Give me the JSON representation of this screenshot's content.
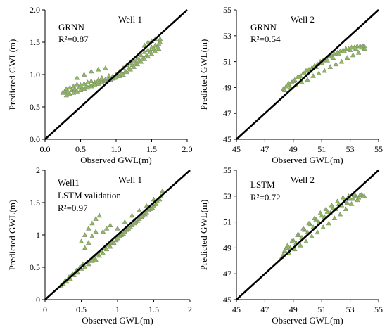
{
  "chart_data": [
    {
      "type": "scatter",
      "panel_label": "Well 1",
      "annotations": [
        "GRNN",
        "R²=0.87"
      ],
      "xlabel": "Observed GWL(m)",
      "ylabel": "Predicted GWL(m)",
      "xlim": [
        0,
        2.0
      ],
      "ylim": [
        0,
        2.0
      ],
      "xticks": [
        "0.0",
        "0.5",
        "1.0",
        "1.5",
        "2.0"
      ],
      "yticks": [
        "0.0",
        "0.5",
        "1.0",
        "1.5",
        "2.0"
      ],
      "grid": false,
      "reference_line": "1:1",
      "series": [
        {
          "marker": "triangle",
          "color": "#8fbc5a",
          "x": [
            0.25,
            0.28,
            0.3,
            0.32,
            0.35,
            0.38,
            0.4,
            0.42,
            0.45,
            0.48,
            0.5,
            0.52,
            0.55,
            0.58,
            0.6,
            0.63,
            0.65,
            0.68,
            0.7,
            0.72,
            0.75,
            0.78,
            0.8,
            0.82,
            0.85,
            0.88,
            0.9,
            0.92,
            0.95,
            0.98,
            1.0,
            1.03,
            1.05,
            1.08,
            1.1,
            1.13,
            1.15,
            1.18,
            1.2,
            1.23,
            1.25,
            1.28,
            1.3,
            1.33,
            1.35,
            1.38,
            1.4,
            1.43,
            1.45,
            1.48,
            1.5,
            1.53,
            1.55,
            1.58,
            1.6,
            1.62,
            0.3,
            0.35,
            0.4,
            0.45,
            0.5,
            0.55,
            0.6,
            0.65,
            0.7,
            0.75,
            0.8,
            0.85,
            0.9,
            0.95,
            1.0,
            1.05,
            1.1,
            1.15,
            1.2,
            1.25,
            1.3,
            1.35,
            1.4,
            1.45,
            1.5,
            1.55,
            1.6,
            0.45,
            0.55,
            0.65,
            0.75,
            0.85,
            1.4,
            1.45,
            1.5,
            1.55,
            1.62
          ],
          "y": [
            0.72,
            0.75,
            0.78,
            0.74,
            0.8,
            0.76,
            0.82,
            0.78,
            0.85,
            0.8,
            0.84,
            0.79,
            0.86,
            0.82,
            0.88,
            0.83,
            0.9,
            0.85,
            0.88,
            0.86,
            0.92,
            0.88,
            0.95,
            0.9,
            0.93,
            0.91,
            0.98,
            0.92,
            0.97,
            0.95,
            1.0,
            0.98,
            1.05,
            1.02,
            1.1,
            1.05,
            1.15,
            1.1,
            1.18,
            1.15,
            1.22,
            1.18,
            1.25,
            1.22,
            1.3,
            1.25,
            1.35,
            1.3,
            1.38,
            1.35,
            1.42,
            1.4,
            1.45,
            1.42,
            1.48,
            1.5,
            0.68,
            0.7,
            0.72,
            0.74,
            0.76,
            0.78,
            0.8,
            0.82,
            0.84,
            0.86,
            0.88,
            0.9,
            0.92,
            0.94,
            0.96,
            0.98,
            1.0,
            1.04,
            1.08,
            1.12,
            1.16,
            1.2,
            1.24,
            1.28,
            1.32,
            1.36,
            1.4,
            0.95,
            1.0,
            1.05,
            1.08,
            1.1,
            1.45,
            1.5,
            1.52,
            1.55,
            1.55
          ]
        }
      ]
    },
    {
      "type": "scatter",
      "panel_label": "Well 2",
      "annotations": [
        "GRNN",
        "R²=0.54"
      ],
      "xlabel": "Observed GWL(m)",
      "ylabel": "Predicted GWL(m)",
      "xlim": [
        45,
        55
      ],
      "ylim": [
        45,
        55
      ],
      "xticks": [
        "45",
        "47",
        "49",
        "51",
        "53",
        "55"
      ],
      "yticks": [
        "45",
        "47",
        "49",
        "51",
        "53",
        "55"
      ],
      "grid": false,
      "reference_line": "1:1",
      "series": [
        {
          "marker": "triangle",
          "color": "#8fbc5a",
          "x": [
            48.3,
            48.5,
            48.7,
            48.9,
            49.1,
            49.3,
            49.5,
            49.7,
            49.9,
            50.1,
            50.3,
            50.5,
            50.7,
            50.9,
            51.1,
            51.3,
            51.5,
            51.7,
            51.9,
            52.1,
            52.3,
            52.5,
            52.7,
            52.9,
            53.1,
            53.3,
            53.5,
            53.7,
            53.9,
            54.0,
            48.4,
            48.8,
            49.2,
            49.6,
            50.0,
            50.4,
            50.8,
            51.2,
            51.6,
            52.0,
            52.4,
            52.8,
            53.2,
            53.6,
            54.0,
            48.6,
            49.0,
            49.4,
            49.8,
            50.2,
            50.6,
            51.0,
            51.4,
            51.8,
            52.2,
            52.6,
            53.0,
            53.4,
            53.8
          ],
          "y": [
            48.9,
            49.1,
            49.3,
            49.4,
            49.6,
            49.8,
            49.9,
            50.1,
            50.3,
            50.4,
            50.5,
            50.7,
            50.8,
            51.0,
            51.1,
            51.2,
            51.4,
            51.5,
            51.6,
            51.7,
            51.8,
            51.9,
            52.0,
            52.0,
            52.1,
            52.1,
            52.2,
            52.2,
            52.2,
            52.2,
            48.8,
            49.0,
            49.2,
            49.4,
            49.6,
            49.9,
            50.1,
            50.3,
            50.6,
            50.8,
            51.0,
            51.3,
            51.5,
            51.7,
            52.0,
            49.2,
            49.5,
            49.8,
            50.1,
            50.3,
            50.6,
            50.9,
            51.1,
            51.3,
            51.6,
            51.8,
            51.9,
            52.0,
            52.1
          ]
        }
      ]
    },
    {
      "type": "scatter",
      "panel_label": "Well 1",
      "annotations": [
        "Well1",
        "LSTM validation",
        "R²=0.97"
      ],
      "xlabel": "Observed GWL(m)",
      "ylabel": "Predicted GWL(m)",
      "xlim": [
        0,
        2
      ],
      "ylim": [
        0,
        2
      ],
      "xticks": [
        "0",
        "0.5",
        "1",
        "1.5",
        "2"
      ],
      "yticks": [
        "0",
        "0.5",
        "1",
        "1.5",
        "2"
      ],
      "grid": false,
      "reference_line": "1:1",
      "series": [
        {
          "marker": "triangle",
          "color": "#8fbc5a",
          "x": [
            0.22,
            0.25,
            0.28,
            0.3,
            0.33,
            0.35,
            0.38,
            0.4,
            0.43,
            0.45,
            0.48,
            0.5,
            0.52,
            0.55,
            0.58,
            0.6,
            0.62,
            0.65,
            0.68,
            0.7,
            0.72,
            0.75,
            0.78,
            0.8,
            0.82,
            0.85,
            0.88,
            0.9,
            0.92,
            0.95,
            0.98,
            1.0,
            1.03,
            1.05,
            1.08,
            1.1,
            1.13,
            1.15,
            1.18,
            1.2,
            1.23,
            1.25,
            1.28,
            1.3,
            1.33,
            1.35,
            1.38,
            1.4,
            1.43,
            1.45,
            1.48,
            1.5,
            1.53,
            1.55,
            1.58,
            1.6,
            1.62,
            0.5,
            0.55,
            0.6,
            0.65,
            0.7,
            0.75,
            0.55,
            0.6,
            0.65,
            0.7,
            0.8,
            0.85,
            0.9,
            1.0,
            1.1,
            1.2,
            1.3,
            1.4,
            1.5
          ],
          "y": [
            0.22,
            0.25,
            0.3,
            0.28,
            0.35,
            0.32,
            0.4,
            0.38,
            0.45,
            0.42,
            0.5,
            0.48,
            0.55,
            0.5,
            0.58,
            0.55,
            0.6,
            0.6,
            0.65,
            0.62,
            0.7,
            0.68,
            0.75,
            0.72,
            0.8,
            0.78,
            0.85,
            0.82,
            0.88,
            0.88,
            0.92,
            0.95,
            0.98,
            1.0,
            1.02,
            1.05,
            1.08,
            1.1,
            1.12,
            1.15,
            1.18,
            1.2,
            1.22,
            1.25,
            1.28,
            1.3,
            1.32,
            1.35,
            1.38,
            1.4,
            1.42,
            1.45,
            1.48,
            1.52,
            1.55,
            1.6,
            1.68,
            0.9,
            1.0,
            1.1,
            1.18,
            1.25,
            1.3,
            0.8,
            0.88,
            0.98,
            1.05,
            1.05,
            1.1,
            1.15,
            1.1,
            1.2,
            1.3,
            1.38,
            1.45,
            1.55
          ]
        }
      ]
    },
    {
      "type": "scatter",
      "panel_label": "Well 2",
      "annotations": [
        "LSTM",
        "R²=0.72"
      ],
      "xlabel": "Observed GWL(m)",
      "ylabel": "Predicted GWL(m)",
      "xlim": [
        45,
        55
      ],
      "ylim": [
        45,
        55
      ],
      "xticks": [
        "45",
        "47",
        "49",
        "51",
        "53",
        "55"
      ],
      "yticks": [
        "45",
        "47",
        "49",
        "51",
        "53",
        "55"
      ],
      "grid": false,
      "reference_line": "1:1",
      "series": [
        {
          "marker": "triangle",
          "color": "#8fbc5a",
          "x": [
            48.2,
            48.4,
            48.6,
            48.8,
            49.0,
            49.2,
            49.4,
            49.6,
            49.8,
            50.0,
            50.2,
            50.4,
            50.6,
            50.8,
            51.0,
            51.2,
            51.4,
            51.6,
            51.8,
            52.0,
            52.2,
            52.4,
            52.6,
            52.8,
            53.0,
            53.2,
            53.4,
            53.6,
            53.8,
            54.0,
            48.3,
            48.7,
            49.1,
            49.5,
            49.9,
            50.3,
            50.7,
            51.1,
            51.5,
            51.9,
            52.3,
            52.7,
            53.1,
            53.5,
            53.9,
            48.5,
            48.9,
            49.3,
            49.7,
            50.1,
            50.5,
            50.9,
            51.3,
            51.7,
            52.1,
            52.5,
            52.9,
            53.3,
            53.7
          ],
          "y": [
            48.3,
            48.8,
            49.2,
            49.0,
            49.6,
            49.4,
            50.0,
            49.8,
            50.4,
            50.2,
            50.8,
            50.6,
            51.2,
            51.0,
            51.5,
            51.4,
            51.8,
            51.7,
            52.1,
            52.0,
            52.4,
            52.3,
            52.6,
            52.5,
            52.8,
            52.8,
            53.0,
            52.9,
            53.1,
            53.0,
            48.5,
            48.6,
            48.9,
            49.2,
            49.5,
            49.9,
            50.2,
            50.6,
            50.9,
            51.3,
            51.6,
            52.0,
            52.4,
            52.7,
            53.0,
            49.0,
            49.5,
            50.0,
            50.5,
            50.9,
            51.3,
            51.7,
            52.0,
            52.3,
            52.6,
            52.9,
            53.0,
            53.1,
            53.1
          ]
        }
      ]
    }
  ]
}
